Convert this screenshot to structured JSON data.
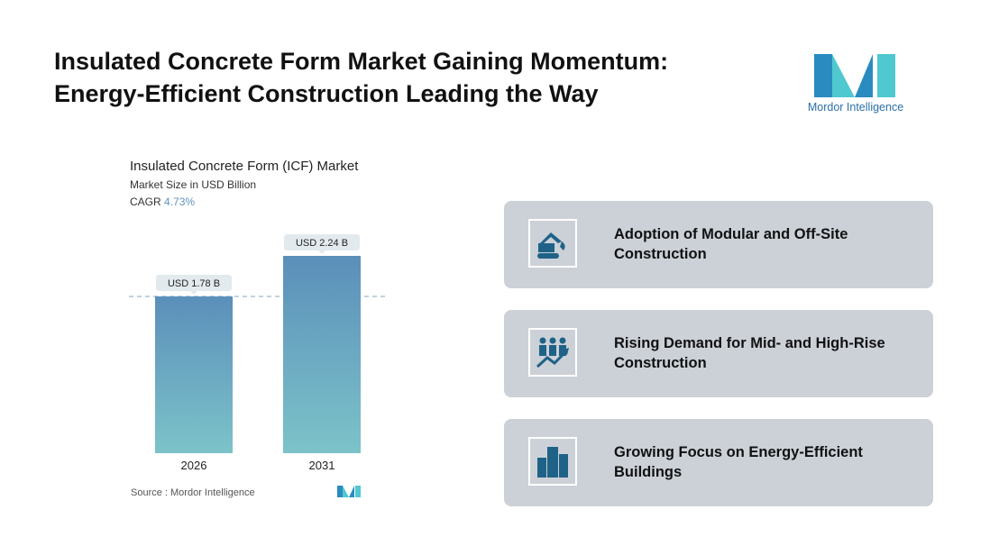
{
  "header": {
    "title_line1": "Insulated Concrete Form Market Gaining Momentum:",
    "title_line2": "Energy-Efficient Construction Leading the Way"
  },
  "logo": {
    "text": "Mordor Intelligence",
    "colors": [
      "#2a8bc0",
      "#4fc8d0"
    ]
  },
  "chart_data": {
    "type": "bar",
    "title": "Insulated Concrete Form (ICF) Market",
    "subtitle": "Market Size in USD Billion",
    "cagr_label": "CAGR",
    "cagr_value": "4.73%",
    "categories": [
      "2026",
      "2031"
    ],
    "values": [
      1.78,
      2.24
    ],
    "data_labels": [
      "USD 1.78 B",
      "USD 2.24 B"
    ],
    "ylim": [
      0,
      2.24
    ],
    "reference_line": 1.78,
    "bar_gradient": [
      "#5b8fba",
      "#7cc3c9"
    ],
    "source": "Source :  Mordor Intelligence"
  },
  "drivers": [
    {
      "label": "Adoption of Modular and Off-Site Construction",
      "icon": "excavator-icon"
    },
    {
      "label": "Rising Demand for Mid- and High-Rise Construction",
      "icon": "people-growth-icon"
    },
    {
      "label": "Growing Focus on Energy-Efficient Buildings",
      "icon": "buildings-icon"
    }
  ]
}
